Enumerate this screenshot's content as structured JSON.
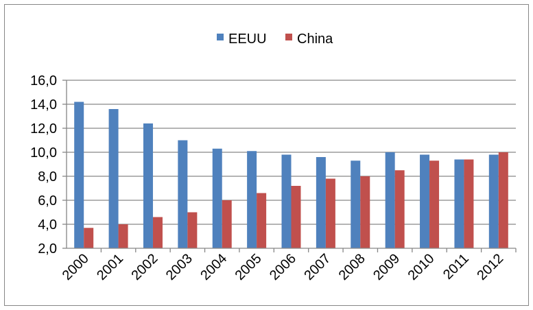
{
  "chart_data": {
    "type": "bar",
    "categories": [
      "2000",
      "2001",
      "2002",
      "2003",
      "2004",
      "2005",
      "2006",
      "2007",
      "2008",
      "2009",
      "2010",
      "2011",
      "2012"
    ],
    "series": [
      {
        "name": "EEUU",
        "color": "#4F81BD",
        "values": [
          14.2,
          13.6,
          12.4,
          11.0,
          10.3,
          10.1,
          9.8,
          9.6,
          9.3,
          10.0,
          9.8,
          9.4,
          9.8
        ]
      },
      {
        "name": "China",
        "color": "#C0504D",
        "values": [
          3.7,
          4.0,
          4.6,
          5.0,
          6.0,
          6.6,
          7.2,
          7.8,
          8.0,
          8.5,
          9.3,
          9.4,
          10.0
        ]
      }
    ],
    "yticks": [
      "2,0",
      "4,0",
      "6,0",
      "8,0",
      "10,0",
      "12,0",
      "14,0",
      "16,0"
    ],
    "ylim": [
      2,
      16
    ],
    "grid": true,
    "legend_position": "top-center",
    "title": "",
    "xlabel": "",
    "ylabel": ""
  }
}
